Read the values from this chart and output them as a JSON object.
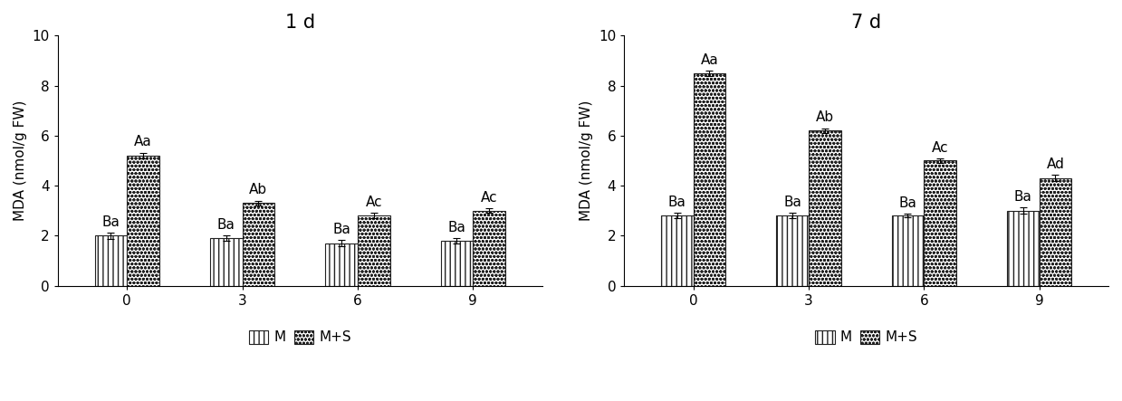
{
  "chart1": {
    "title": "1 d",
    "categories": [
      "0",
      "3",
      "6",
      "9"
    ],
    "M_values": [
      2.0,
      1.9,
      1.7,
      1.8
    ],
    "MS_values": [
      5.2,
      3.3,
      2.8,
      3.0
    ],
    "M_errors": [
      0.12,
      0.1,
      0.12,
      0.1
    ],
    "MS_errors": [
      0.12,
      0.1,
      0.1,
      0.1
    ],
    "M_labels": [
      "Ba",
      "Ba",
      "Ba",
      "Ba"
    ],
    "MS_labels": [
      "Aa",
      "Ab",
      "Ac",
      "Ac"
    ],
    "ylabel": "MDA (nmol/g FW)",
    "ylim": [
      0,
      10
    ],
    "yticks": [
      0,
      2,
      4,
      6,
      8,
      10
    ]
  },
  "chart2": {
    "title": "7 d",
    "categories": [
      "0",
      "3",
      "6",
      "9"
    ],
    "M_values": [
      2.8,
      2.8,
      2.8,
      3.0
    ],
    "MS_values": [
      8.5,
      6.2,
      5.0,
      4.3
    ],
    "M_errors": [
      0.1,
      0.1,
      0.08,
      0.12
    ],
    "MS_errors": [
      0.1,
      0.1,
      0.1,
      0.12
    ],
    "M_labels": [
      "Ba",
      "Ba",
      "Ba",
      "Ba"
    ],
    "MS_labels": [
      "Aa",
      "Ab",
      "Ac",
      "Ad"
    ],
    "ylabel": "MDA (nmol/g FW)",
    "ylim": [
      0,
      10
    ],
    "yticks": [
      0,
      2,
      4,
      6,
      8,
      10
    ]
  },
  "bar_width": 0.28,
  "M_color": "#ffffff",
  "MS_color": "#ffffff",
  "M_edgecolor": "#222222",
  "MS_edgecolor": "#222222",
  "legend_M": "M",
  "legend_MS": "M+S",
  "label_fontsize": 11,
  "title_fontsize": 15,
  "axis_fontsize": 11,
  "tick_fontsize": 11,
  "background_color": "#ffffff"
}
